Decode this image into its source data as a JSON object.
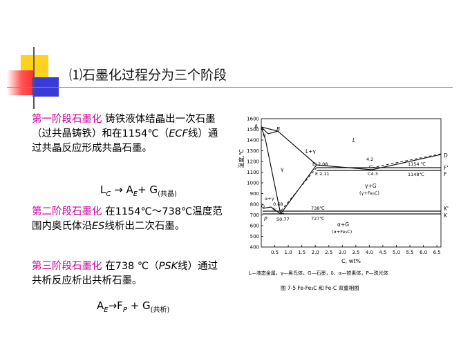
{
  "title": "⑴石墨化过程分为三个阶段",
  "stage1": {
    "label": "第一阶段石墨化",
    "text_a": "铸铁液体结晶出一次石墨（过共晶铸铁）和在1154℃（",
    "ecf": "ECF",
    "text_b": "线）通过共晶反应形成共晶石墨。"
  },
  "eq1": {
    "l": "L",
    "l_sub": "C",
    "arrow": "→",
    "a": "A",
    "a_sub": "E",
    "plus": "+ G",
    "g_sub": "(共晶)"
  },
  "stage2": {
    "label": "第二阶段石墨化",
    "text_a": "在1154℃～738℃温度范围内奥氏体沿",
    "es": "ES",
    "text_b": "线析出二次石墨。"
  },
  "stage3": {
    "label": "第三阶段石墨化",
    "text_a": "在738 ℃（",
    "psk": "PSK",
    "text_b": "线）通过共析反应析出共析石墨。"
  },
  "eq3": {
    "a": "A",
    "a_sub": "E",
    "arrow": "→",
    "f": "F",
    "f_sub": "P",
    "plus": "+ G",
    "g_sub": "(共析)"
  },
  "figure": {
    "ylabel": "温度,℃",
    "xlabel": "C, wt%",
    "yticks": [
      "1600",
      "1500",
      "1400",
      "1300",
      "1200",
      "1100",
      "1000",
      "900",
      "800",
      "700",
      "600",
      "500",
      "400"
    ],
    "xticks": [
      "0.5",
      "1.0",
      "1.5",
      "2.0",
      "2.5",
      "3.0",
      "3.5",
      "4.0",
      "4.5",
      "5.0",
      "5.5",
      "6.0",
      "6.5"
    ],
    "labels": {
      "A": "A",
      "H": "H",
      "B": "B",
      "L": "L",
      "Lg": "L+γ",
      "g": "γ",
      "E_top": "E' 2.08",
      "E_bot": "E 2.11",
      "C_top": "4.2",
      "C_mid": "C'",
      "C_bot": "C4.3",
      "t1154": "1154 ℃",
      "t1148": "1148℃",
      "D": "D",
      "F1": "F'",
      "F2": "F",
      "gfe": "γ+G",
      "gfe2": "(γ+Fe₃C)",
      "ag": "α+γ",
      "G": "G",
      "s068": "0.68",
      "S1": "S'",
      "P": "P",
      "s077": "S0.77",
      "t738": "738℃",
      "t727": "727℃",
      "K1": "K'",
      "K2": "K",
      "aG": "α+G",
      "aG2": "(α+Fe₃C)"
    },
    "legend": "L—液态金属，γ—奥氏体，G—石墨，δ、α—铁素体，P—珠光体",
    "caption": "图 7-5   Fe-Fe₃C 和 Fe-C 双重相图"
  }
}
